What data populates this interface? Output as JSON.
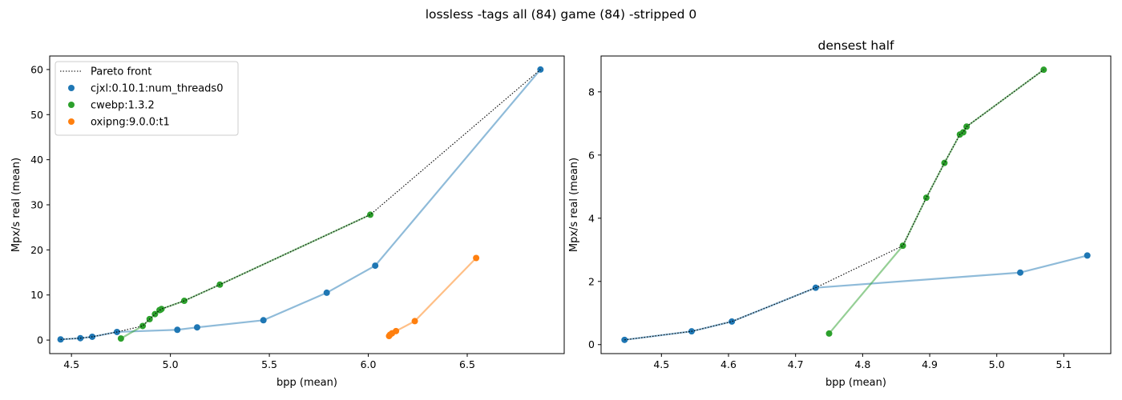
{
  "figure": {
    "suptitle": "lossless -tags all (84) game (84) -stripped 0"
  },
  "colors": {
    "cjxl": "#1f77b4",
    "cwebp": "#2ca02c",
    "oxipng": "#ff7f0e",
    "pareto": "#000000"
  },
  "chart_data": [
    {
      "type": "scatter",
      "title": "",
      "xlabel": "bpp (mean)",
      "ylabel": "Mpx/s real (mean)",
      "xlim": [
        4.39,
        6.99
      ],
      "ylim": [
        -3.0,
        63.0
      ],
      "xticks": [
        4.5,
        5.0,
        5.5,
        6.0,
        6.5
      ],
      "xtick_labels": [
        "4.5",
        "5.0",
        "5.5",
        "6.0",
        "6.5"
      ],
      "yticks": [
        0,
        10,
        20,
        30,
        40,
        50,
        60
      ],
      "ytick_labels": [
        "0",
        "10",
        "20",
        "30",
        "40",
        "50",
        "60"
      ],
      "legend": {
        "placement": "top-left",
        "entries": [
          "Pareto front",
          "cjxl:0.10.1:num_threads0",
          "cwebp:1.3.2",
          "oxipng:9.0.0:t1"
        ]
      },
      "series": [
        {
          "name": "cjxl:0.10.1:num_threads0",
          "color_key": "cjxl",
          "x": [
            4.445,
            4.545,
            4.605,
            4.73,
            5.035,
            5.135,
            5.47,
            5.79,
            6.035,
            6.87
          ],
          "y": [
            0.15,
            0.42,
            0.73,
            1.8,
            2.28,
            2.82,
            4.4,
            10.5,
            16.5,
            60.0
          ]
        },
        {
          "name": "cwebp:1.3.2",
          "color_key": "cwebp",
          "x": [
            4.75,
            4.86,
            4.895,
            4.922,
            4.945,
            4.95,
            4.955,
            5.07,
            5.25,
            6.01
          ],
          "y": [
            0.35,
            3.13,
            4.65,
            5.75,
            6.65,
            6.72,
            6.9,
            8.7,
            12.3,
            27.8
          ]
        },
        {
          "name": "oxipng:9.0.0:t1",
          "color_key": "oxipng",
          "x": [
            6.105,
            6.11,
            6.12,
            6.14,
            6.235,
            6.545
          ],
          "y": [
            0.9,
            1.2,
            1.5,
            2.0,
            4.2,
            18.2
          ]
        }
      ],
      "pareto": {
        "name": "Pareto front",
        "x": [
          4.445,
          4.545,
          4.605,
          4.73,
          4.86,
          4.895,
          4.922,
          4.945,
          4.95,
          4.955,
          5.07,
          5.25,
          6.01,
          6.87
        ],
        "y": [
          0.15,
          0.42,
          0.73,
          1.8,
          3.13,
          4.65,
          5.75,
          6.65,
          6.72,
          6.9,
          8.7,
          12.3,
          27.8,
          60.0
        ]
      }
    },
    {
      "type": "scatter",
      "title": "densest half",
      "xlabel": "bpp (mean)",
      "ylabel": "Mpx/s real (mean)",
      "xlim": [
        4.41,
        5.17
      ],
      "ylim": [
        -0.285,
        9.135
      ],
      "xticks": [
        4.5,
        4.6,
        4.7,
        4.8,
        4.9,
        5.0,
        5.1
      ],
      "xtick_labels": [
        "4.5",
        "4.6",
        "4.7",
        "4.8",
        "4.9",
        "5.0",
        "5.1"
      ],
      "yticks": [
        0,
        2,
        4,
        6,
        8
      ],
      "ytick_labels": [
        "0",
        "2",
        "4",
        "6",
        "8"
      ],
      "series": [
        {
          "name": "cjxl:0.10.1:num_threads0",
          "color_key": "cjxl",
          "x": [
            4.445,
            4.545,
            4.605,
            4.73,
            5.035,
            5.135
          ],
          "y": [
            0.15,
            0.42,
            0.73,
            1.8,
            2.28,
            2.82
          ]
        },
        {
          "name": "cwebp:1.3.2",
          "color_key": "cwebp",
          "x": [
            4.75,
            4.86,
            4.895,
            4.922,
            4.945,
            4.95,
            4.955,
            5.07
          ],
          "y": [
            0.35,
            3.13,
            4.65,
            5.75,
            6.65,
            6.72,
            6.9,
            8.7
          ]
        }
      ],
      "pareto": {
        "name": "Pareto front",
        "x": [
          4.445,
          4.545,
          4.605,
          4.73,
          4.86,
          4.895,
          4.922,
          4.945,
          4.95,
          4.955,
          5.07
        ],
        "y": [
          0.15,
          0.42,
          0.73,
          1.8,
          3.13,
          4.65,
          5.75,
          6.65,
          6.72,
          6.9,
          8.7
        ]
      }
    }
  ]
}
